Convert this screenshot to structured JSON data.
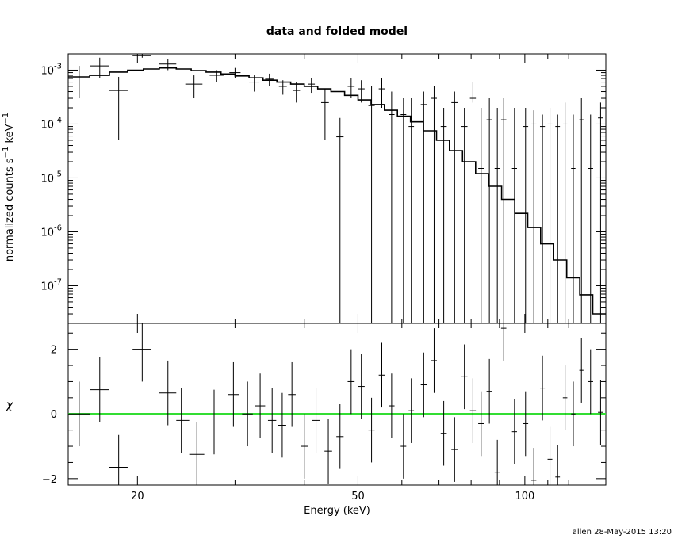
{
  "chart_data": {
    "title": "data and folded model",
    "footer": "allen 28-May-2015 13:20",
    "top_panel": {
      "type": "scatter",
      "ylabel": "normalized counts s^-1 keV^-1",
      "yscale": "log",
      "ylim": [
        2e-08,
        0.002
      ],
      "y_tick_exponents": [
        "-3",
        "-4",
        "-5",
        "-6",
        "-7"
      ],
      "y_tick_values": [
        0.001,
        0.0001,
        1e-05,
        1e-06,
        1e-07
      ],
      "data": [
        {
          "x": 15.7,
          "xl": 15.0,
          "xh": 16.4,
          "y": 0.00075,
          "yl": 0.0003,
          "yh": 0.0012
        },
        {
          "x": 17.1,
          "xl": 16.4,
          "xh": 17.8,
          "y": 0.0012,
          "yl": 0.0007,
          "yh": 0.0017
        },
        {
          "x": 18.5,
          "xl": 17.8,
          "xh": 19.2,
          "y": 0.00042,
          "yl": 5e-05,
          "yh": 0.00075
        },
        {
          "x": 20.4,
          "xl": 19.6,
          "xh": 21.2,
          "y": 0.00185,
          "yl": 0.0017,
          "yh": 0.002
        },
        {
          "x": 22.7,
          "xl": 21.9,
          "xh": 23.5,
          "y": 0.0013,
          "yl": 0.001,
          "yh": 0.0016
        },
        {
          "x": 25.3,
          "xl": 24.4,
          "xh": 26.2,
          "y": 0.00055,
          "yl": 0.0003,
          "yh": 0.0008
        },
        {
          "x": 27.8,
          "xl": 27.0,
          "xh": 28.6,
          "y": 0.0008,
          "yl": 0.0006,
          "yh": 0.001
        },
        {
          "x": 30.0,
          "xl": 29.3,
          "xh": 30.7,
          "y": 0.0009,
          "yl": 0.0007,
          "yh": 0.0011
        },
        {
          "x": 32.5,
          "xl": 31.8,
          "xh": 33.2,
          "y": 0.0006,
          "yl": 0.0004,
          "yh": 0.0008
        },
        {
          "x": 34.6,
          "xl": 34.0,
          "xh": 35.2,
          "y": 0.00068,
          "yl": 0.0005,
          "yh": 0.00086
        },
        {
          "x": 36.6,
          "xl": 36.0,
          "xh": 37.2,
          "y": 0.0005,
          "yl": 0.00035,
          "yh": 0.00065
        },
        {
          "x": 38.7,
          "xl": 38.1,
          "xh": 39.3,
          "y": 0.00042,
          "yl": 0.00025,
          "yh": 0.0006
        },
        {
          "x": 41.2,
          "xl": 40.6,
          "xh": 41.8,
          "y": 0.00055,
          "yl": 0.00038,
          "yh": 0.00072
        },
        {
          "x": 43.6,
          "xl": 42.9,
          "xh": 44.3,
          "y": 0.00025,
          "yl": 5e-05,
          "yh": 0.00045
        },
        {
          "x": 46.4,
          "xl": 45.7,
          "xh": 47.1,
          "y": 5.8e-05,
          "yl": 1e-09,
          "yh": 0.00013
        },
        {
          "x": 48.6,
          "xl": 47.9,
          "xh": 49.3,
          "y": 0.0005,
          "yl": 0.0003,
          "yh": 0.0007
        },
        {
          "x": 50.7,
          "xl": 50.0,
          "xh": 51.4,
          "y": 0.00045,
          "yl": 0.00025,
          "yh": 0.00065
        },
        {
          "x": 52.9,
          "xl": 52.2,
          "xh": 53.6,
          "y": 0.00022,
          "yl": 1e-09,
          "yh": 0.0005
        },
        {
          "x": 55.2,
          "xl": 54.5,
          "xh": 55.9,
          "y": 0.00045,
          "yl": 0.0002,
          "yh": 0.0007
        },
        {
          "x": 57.5,
          "xl": 56.8,
          "xh": 58.2,
          "y": 0.00015,
          "yl": 1e-09,
          "yh": 0.0004
        },
        {
          "x": 60.4,
          "xl": 59.7,
          "xh": 61.1,
          "y": 0.00015,
          "yl": 1e-09,
          "yh": 0.0003
        },
        {
          "x": 62.4,
          "xl": 61.7,
          "xh": 63.1,
          "y": 9e-05,
          "yl": 1e-09,
          "yh": 0.0003
        },
        {
          "x": 65.7,
          "xl": 64.9,
          "xh": 66.5,
          "y": 0.00023,
          "yl": 1e-09,
          "yh": 0.0004
        },
        {
          "x": 68.6,
          "xl": 67.8,
          "xh": 69.4,
          "y": 0.0003,
          "yl": 1e-09,
          "yh": 0.0005
        },
        {
          "x": 71.4,
          "xl": 70.5,
          "xh": 72.3,
          "y": 9e-05,
          "yl": 1e-09,
          "yh": 0.0002
        },
        {
          "x": 74.7,
          "xl": 73.7,
          "xh": 75.7,
          "y": 0.00025,
          "yl": 1e-09,
          "yh": 0.0004
        },
        {
          "x": 77.8,
          "xl": 76.8,
          "xh": 78.8,
          "y": 9e-05,
          "yl": 1e-09,
          "yh": 0.0002
        },
        {
          "x": 80.6,
          "xl": 79.6,
          "xh": 81.6,
          "y": 0.0003,
          "yl": 0.00025,
          "yh": 0.0006
        },
        {
          "x": 83.4,
          "xl": 82.4,
          "xh": 84.4,
          "y": 1.5e-05,
          "yl": 1e-09,
          "yh": 0.0002
        },
        {
          "x": 86.3,
          "xl": 85.3,
          "xh": 87.3,
          "y": 0.00012,
          "yl": 1e-09,
          "yh": 0.0003
        },
        {
          "x": 89.2,
          "xl": 88.2,
          "xh": 90.2,
          "y": 1.5e-05,
          "yl": 1e-09,
          "yh": 0.0002
        },
        {
          "x": 91.6,
          "xl": 90.6,
          "xh": 92.6,
          "y": 0.00012,
          "yl": 1e-09,
          "yh": 0.0003
        },
        {
          "x": 95.8,
          "xl": 94.8,
          "xh": 96.8,
          "y": 1.5e-05,
          "yl": 1e-09,
          "yh": 0.0002
        },
        {
          "x": 100.3,
          "xl": 99.2,
          "xh": 101.4,
          "y": 9e-05,
          "yl": 1e-09,
          "yh": 0.0002
        },
        {
          "x": 103.8,
          "xl": 102.7,
          "xh": 104.9,
          "y": 0.0001,
          "yl": 1e-09,
          "yh": 0.00018
        },
        {
          "x": 107.6,
          "xl": 106.5,
          "xh": 108.7,
          "y": 9e-05,
          "yl": 1e-09,
          "yh": 0.00015
        },
        {
          "x": 111.0,
          "xl": 109.9,
          "xh": 112.1,
          "y": 0.0001,
          "yl": 1e-09,
          "yh": 0.0002
        },
        {
          "x": 114.6,
          "xl": 113.5,
          "xh": 115.7,
          "y": 9e-05,
          "yl": 1e-09,
          "yh": 0.00015
        },
        {
          "x": 118.2,
          "xl": 117.1,
          "xh": 119.3,
          "y": 0.0001,
          "yl": 1e-09,
          "yh": 0.00025
        },
        {
          "x": 122.3,
          "xl": 121.2,
          "xh": 123.4,
          "y": 1.5e-05,
          "yl": 1e-09,
          "yh": 0.00015
        },
        {
          "x": 126.5,
          "xl": 125.4,
          "xh": 127.6,
          "y": 0.00012,
          "yl": 1e-09,
          "yh": 0.0003
        },
        {
          "x": 131.4,
          "xl": 130.0,
          "xh": 132.8,
          "y": 1.5e-05,
          "yl": 1e-09,
          "yh": 0.00015
        },
        {
          "x": 137.0,
          "xl": 135.5,
          "xh": 138.5,
          "y": 0.00013,
          "yl": 1e-09,
          "yh": 0.00025
        }
      ],
      "model": [
        [
          15.0,
          0.00075
        ],
        [
          16.4,
          0.0008
        ],
        [
          17.8,
          0.00092
        ],
        [
          19.2,
          0.001
        ],
        [
          20.5,
          0.00105
        ],
        [
          21.9,
          0.0011
        ],
        [
          23.5,
          0.00105
        ],
        [
          25.0,
          0.00098
        ],
        [
          26.6,
          0.00092
        ],
        [
          28.3,
          0.00085
        ],
        [
          30.0,
          0.00078
        ],
        [
          31.8,
          0.00072
        ],
        [
          33.7,
          0.00065
        ],
        [
          35.7,
          0.0006
        ],
        [
          37.8,
          0.00055
        ],
        [
          40.0,
          0.0005
        ],
        [
          42.3,
          0.00045
        ],
        [
          44.7,
          0.0004
        ],
        [
          47.3,
          0.00034
        ],
        [
          50.0,
          0.00028
        ],
        [
          52.8,
          0.00023
        ],
        [
          55.8,
          0.00018
        ],
        [
          58.9,
          0.00014
        ],
        [
          62.2,
          0.00011
        ],
        [
          65.6,
          7.5e-05
        ],
        [
          69.3,
          5e-05
        ],
        [
          73.1,
          3.2e-05
        ],
        [
          77.2,
          2e-05
        ],
        [
          81.5,
          1.2e-05
        ],
        [
          86.0,
          7e-06
        ],
        [
          90.8,
          4e-06
        ],
        [
          95.9,
          2.2e-06
        ],
        [
          101.2,
          1.2e-06
        ],
        [
          106.8,
          6e-07
        ],
        [
          112.7,
          3e-07
        ],
        [
          119.0,
          1.4e-07
        ],
        [
          125.6,
          6.8e-08
        ],
        [
          132.6,
          3e-08
        ],
        [
          140.0,
          2e-08
        ]
      ]
    },
    "bottom_panel": {
      "type": "scatter",
      "ylabel": "χ",
      "ylim": [
        -2.2,
        2.8
      ],
      "y_ticks": [
        "2",
        "0",
        "−2"
      ],
      "y_tick_values": [
        2,
        0,
        -2
      ],
      "zero_line_color": "#33dd33",
      "residuals": [
        {
          "x": 15.7,
          "xl": 15.0,
          "xh": 16.4,
          "y": 0.0
        },
        {
          "x": 17.1,
          "xl": 16.4,
          "xh": 17.8,
          "y": 0.75
        },
        {
          "x": 18.5,
          "xl": 17.8,
          "xh": 19.2,
          "y": -1.65
        },
        {
          "x": 20.4,
          "xl": 19.6,
          "xh": 21.2,
          "y": 2.0
        },
        {
          "x": 22.7,
          "xl": 21.9,
          "xh": 23.5,
          "y": 0.65
        },
        {
          "x": 24.0,
          "xl": 23.5,
          "xh": 24.8,
          "y": -0.2
        },
        {
          "x": 25.6,
          "xl": 24.8,
          "xh": 26.4,
          "y": -1.25
        },
        {
          "x": 27.5,
          "xl": 26.8,
          "xh": 28.3,
          "y": -0.25
        },
        {
          "x": 29.8,
          "xl": 29.1,
          "xh": 30.5,
          "y": 0.6
        },
        {
          "x": 31.6,
          "xl": 30.9,
          "xh": 32.3,
          "y": 0.0
        },
        {
          "x": 33.3,
          "xl": 32.6,
          "xh": 34.0,
          "y": 0.25
        },
        {
          "x": 35.0,
          "xl": 34.4,
          "xh": 35.6,
          "y": -0.2
        },
        {
          "x": 36.5,
          "xl": 35.9,
          "xh": 37.1,
          "y": -0.35
        },
        {
          "x": 38.0,
          "xl": 37.4,
          "xh": 38.6,
          "y": 0.6
        },
        {
          "x": 40.0,
          "xl": 39.4,
          "xh": 40.6,
          "y": -1.0
        },
        {
          "x": 42.0,
          "xl": 41.3,
          "xh": 42.7,
          "y": -0.2
        },
        {
          "x": 44.2,
          "xl": 43.5,
          "xh": 44.9,
          "y": -1.15
        },
        {
          "x": 46.4,
          "xl": 45.7,
          "xh": 47.1,
          "y": -0.7
        },
        {
          "x": 48.6,
          "xl": 47.9,
          "xh": 49.3,
          "y": 1.0
        },
        {
          "x": 50.7,
          "xl": 50.0,
          "xh": 51.4,
          "y": 0.85
        },
        {
          "x": 52.9,
          "xl": 52.2,
          "xh": 53.6,
          "y": -0.5
        },
        {
          "x": 55.2,
          "xl": 54.5,
          "xh": 55.9,
          "y": 1.2
        },
        {
          "x": 57.5,
          "xl": 56.8,
          "xh": 58.2,
          "y": 0.25
        },
        {
          "x": 60.4,
          "xl": 59.7,
          "xh": 61.1,
          "y": -1.0
        },
        {
          "x": 62.4,
          "xl": 61.7,
          "xh": 63.1,
          "y": 0.1
        },
        {
          "x": 65.7,
          "xl": 64.9,
          "xh": 66.5,
          "y": 0.9
        },
        {
          "x": 68.6,
          "xl": 67.8,
          "xh": 69.4,
          "y": 1.65
        },
        {
          "x": 71.4,
          "xl": 70.5,
          "xh": 72.3,
          "y": -0.6
        },
        {
          "x": 74.7,
          "xl": 73.7,
          "xh": 75.7,
          "y": -1.1
        },
        {
          "x": 77.8,
          "xl": 76.8,
          "xh": 78.8,
          "y": 1.15
        },
        {
          "x": 80.6,
          "xl": 79.6,
          "xh": 81.6,
          "y": 0.1
        },
        {
          "x": 83.4,
          "xl": 82.4,
          "xh": 84.4,
          "y": -0.3
        },
        {
          "x": 86.3,
          "xl": 85.3,
          "xh": 87.3,
          "y": 0.7
        },
        {
          "x": 89.2,
          "xl": 88.2,
          "xh": 90.2,
          "y": -1.8
        },
        {
          "x": 91.6,
          "xl": 90.6,
          "xh": 92.6,
          "y": 2.65
        },
        {
          "x": 95.8,
          "xl": 94.8,
          "xh": 96.8,
          "y": -0.55
        },
        {
          "x": 100.3,
          "xl": 99.2,
          "xh": 101.4,
          "y": -0.3
        },
        {
          "x": 103.8,
          "xl": 102.7,
          "xh": 104.9,
          "y": -2.05
        },
        {
          "x": 107.6,
          "xl": 106.5,
          "xh": 108.7,
          "y": 0.8
        },
        {
          "x": 111.0,
          "xl": 109.9,
          "xh": 112.1,
          "y": -1.4
        },
        {
          "x": 114.6,
          "xl": 113.5,
          "xh": 115.7,
          "y": -1.95
        },
        {
          "x": 118.2,
          "xl": 117.1,
          "xh": 119.3,
          "y": 0.5
        },
        {
          "x": 122.3,
          "xl": 121.2,
          "xh": 123.4,
          "y": 0.0
        },
        {
          "x": 126.5,
          "xl": 125.4,
          "xh": 127.6,
          "y": 1.35
        },
        {
          "x": 131.4,
          "xl": 130.0,
          "xh": 132.8,
          "y": 1.0
        },
        {
          "x": 137.0,
          "xl": 135.5,
          "xh": 138.5,
          "y": 0.05
        }
      ]
    },
    "x_axis": {
      "label": "Energy (keV)",
      "scale": "log",
      "xlim": [
        15,
        140
      ],
      "ticks": [
        "20",
        "50",
        "100"
      ],
      "tick_values": [
        20,
        50,
        100
      ]
    }
  }
}
